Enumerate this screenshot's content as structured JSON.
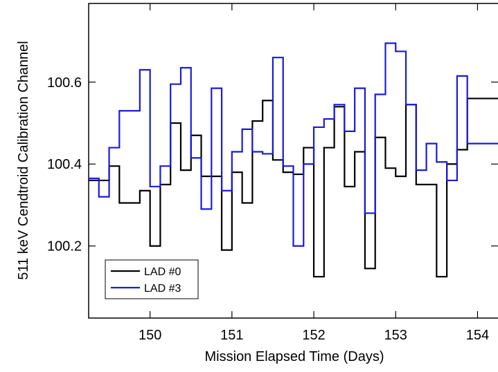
{
  "chart_data": {
    "type": "step",
    "xlabel": "Mission Elapsed Time (Days)",
    "ylabel": "511 keV Cendtroid Calibration Channel",
    "x": [
      149.25,
      149.375,
      149.5,
      149.625,
      149.75,
      149.875,
      150,
      150.125,
      150.25,
      150.375,
      150.5,
      150.625,
      150.75,
      150.875,
      151,
      151.125,
      151.25,
      151.375,
      151.5,
      151.625,
      151.75,
      151.875,
      152,
      152.125,
      152.25,
      152.375,
      152.5,
      152.625,
      152.75,
      152.875,
      153,
      153.125,
      153.25,
      153.375,
      153.5,
      153.625,
      153.75,
      153.875,
      154,
      154.125
    ],
    "series": [
      {
        "name": "LAD #0",
        "color": "#000000",
        "values": [
          100.36,
          100.36,
          100.395,
          100.305,
          100.305,
          100.335,
          100.2,
          100.35,
          100.5,
          100.385,
          100.47,
          100.37,
          100.37,
          100.19,
          100.38,
          100.305,
          100.505,
          100.555,
          100.41,
          100.38,
          100.375,
          100.44,
          100.125,
          100.44,
          100.54,
          100.345,
          100.43,
          100.145,
          100.465,
          100.39,
          100.37,
          100.545,
          100.35,
          100.35,
          100.125,
          100.4,
          100.435,
          100.56,
          100.56,
          100.56
        ]
      },
      {
        "name": "LAD #3",
        "color": "#1a1ad6",
        "values": [
          100.365,
          100.32,
          100.44,
          100.53,
          100.53,
          100.63,
          100.345,
          100.395,
          100.595,
          100.635,
          100.415,
          100.29,
          100.585,
          100.335,
          100.43,
          100.485,
          100.43,
          100.425,
          100.66,
          100.395,
          100.2,
          100.4,
          100.49,
          100.51,
          100.545,
          100.48,
          100.585,
          100.28,
          100.57,
          100.695,
          100.675,
          100.545,
          100.385,
          100.45,
          100.405,
          100.36,
          100.615,
          100.45,
          100.45,
          100.45
        ]
      }
    ],
    "xlim": [
      149.25,
      154.25
    ],
    "xticks": [
      150,
      151,
      152,
      153,
      154
    ],
    "ylim": [
      100.024,
      100.792
    ],
    "yticks": [
      {
        "value": 100.2,
        "label": "100.2"
      },
      {
        "value": 100.4,
        "label": "100.4"
      },
      {
        "value": 100.6,
        "label": "100.6"
      }
    ],
    "legend": "lower left"
  }
}
